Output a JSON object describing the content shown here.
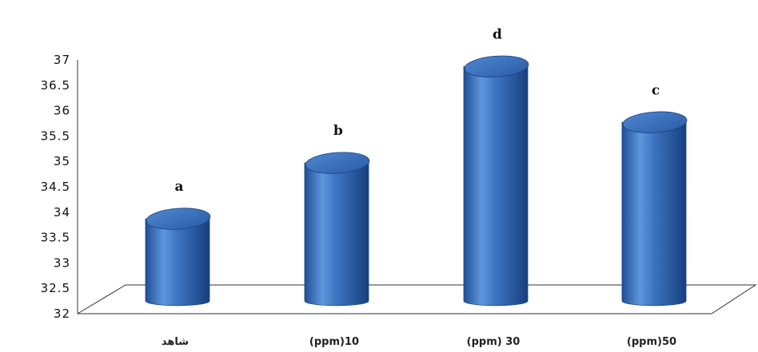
{
  "chart_data": {
    "type": "bar",
    "categories": [
      "شاهد",
      "(ppm)10",
      "(ppm) 30",
      "(ppm)50"
    ],
    "values": [
      33.9,
      35.0,
      36.9,
      35.8
    ],
    "data_labels": [
      "a",
      "b",
      "d",
      "c"
    ],
    "ylim": [
      32,
      37
    ],
    "yticks": [
      "32",
      "32.5",
      "33",
      "33.5",
      "34",
      "34.5",
      "35",
      "35.5",
      "36",
      "36.5",
      "37"
    ],
    "title": "",
    "xlabel": "",
    "ylabel": "",
    "bar_style": "3d-cylinder",
    "bar_color": "#3f78c4",
    "grid": false,
    "legend": "none"
  }
}
